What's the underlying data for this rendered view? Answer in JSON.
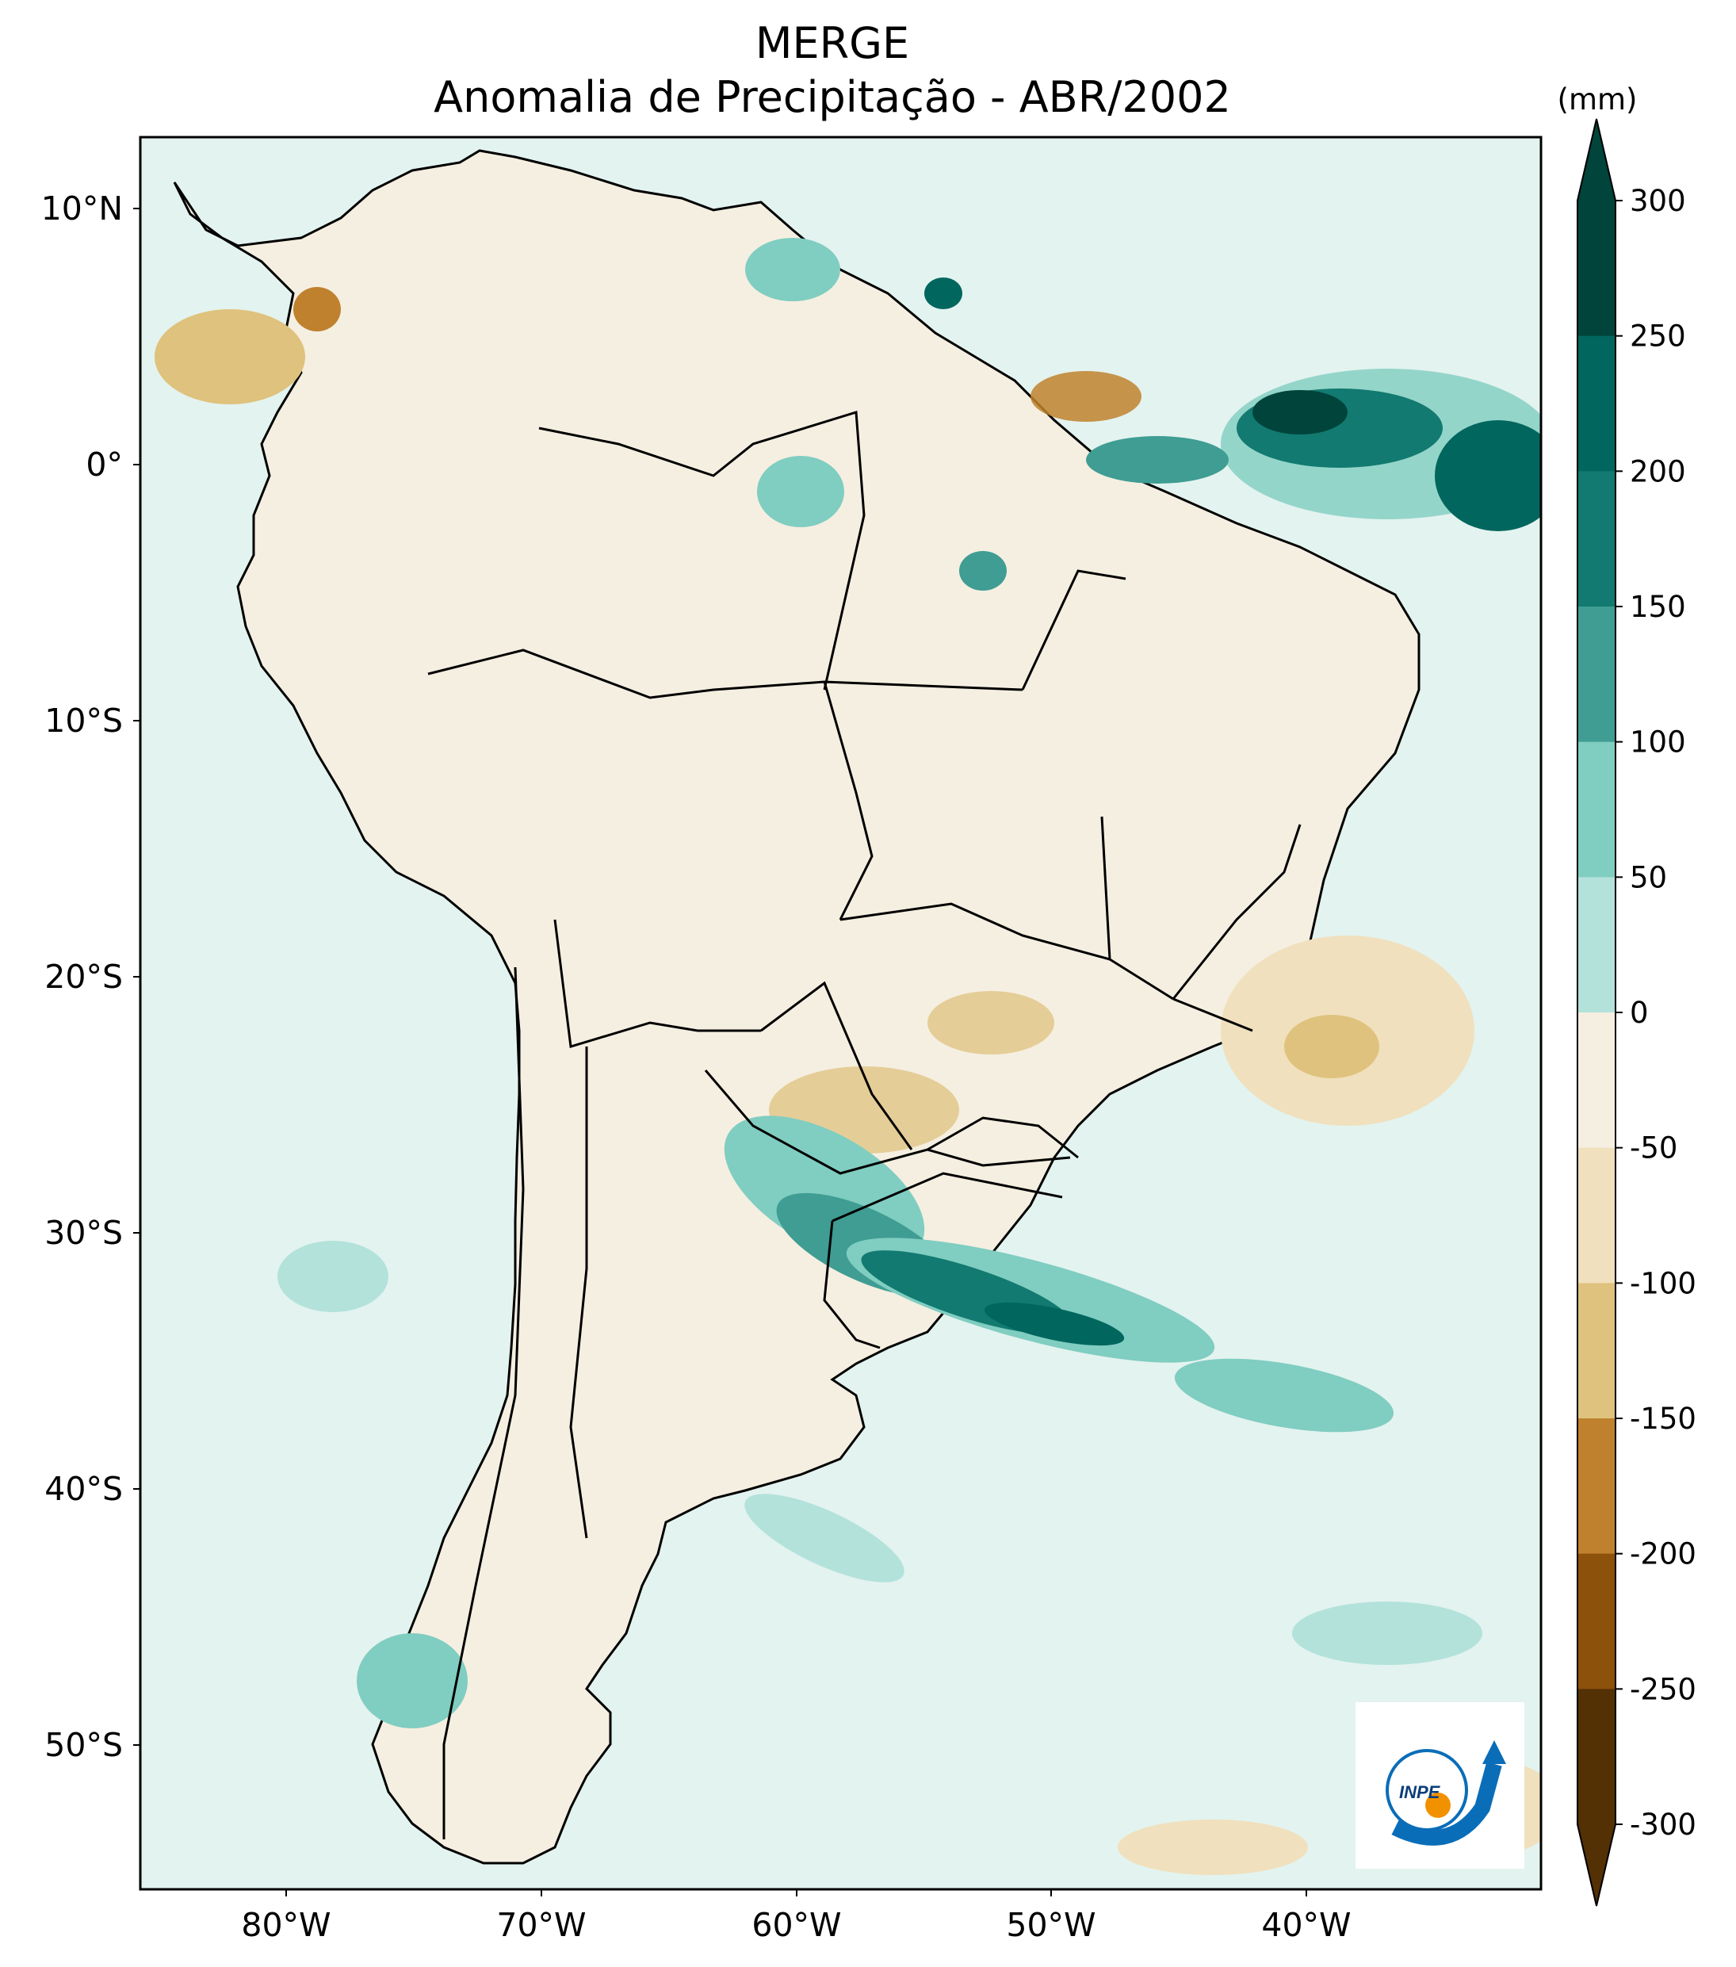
{
  "title": {
    "line1": "MERGE",
    "line2": "Anomalia de Precipitação - ABR/2002"
  },
  "axes": {
    "lat_labels": [
      "10°N",
      "0°",
      "10°S",
      "20°S",
      "30°S",
      "40°S",
      "50°S"
    ],
    "lon_labels": [
      "80°W",
      "70°W",
      "60°W",
      "50°W",
      "40°W"
    ]
  },
  "colorbar": {
    "unit": "(mm)",
    "levels": [
      "300",
      "250",
      "200",
      "150",
      "100",
      "50",
      "0",
      "-50",
      "-100",
      "-150",
      "-200",
      "-250",
      "-300"
    ],
    "colors": [
      "#00443b",
      "#01665e",
      "#127a70",
      "#3f9d93",
      "#80cdc1",
      "#b3e2db",
      "#dff2ee",
      "#f5efe1",
      "#f0e0bd",
      "#dfc27d",
      "#bf812d",
      "#8c510a",
      "#543005"
    ]
  },
  "logo": {
    "text": "INPE",
    "colors": {
      "ring": "#0a6db8",
      "dot": "#f29100"
    }
  },
  "palette": {
    "ocean_base": "#e3f3ef",
    "land_base": "#f5efe1",
    "border": "#000000"
  }
}
